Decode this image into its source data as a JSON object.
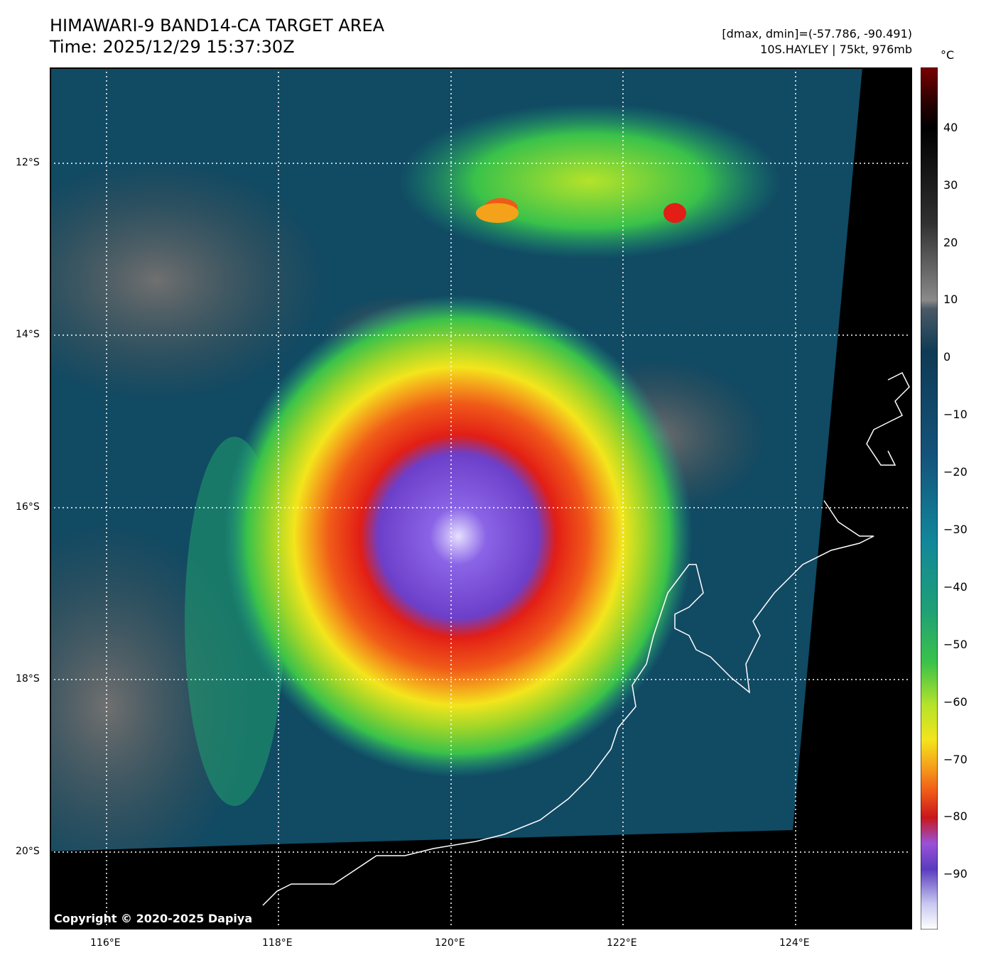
{
  "header": {
    "title_line1": "HIMAWARI-9 BAND14-CA TARGET AREA",
    "title_line2": "Time: 2025/12/29 15:37:30Z",
    "dminmax": "[dmax, dmin]=(-57.786, -90.491)",
    "storm": "10S.HAYLEY | 75kt, 976mb"
  },
  "map": {
    "lat_labels": [
      "12°S",
      "14°S",
      "16°S",
      "18°S",
      "20°S"
    ],
    "lon_labels": [
      "116°E",
      "118°E",
      "120°E",
      "122°E",
      "124°E"
    ],
    "copyright": "Copyright © 2020-2025 Dapiya"
  },
  "colorbar": {
    "unit": "°C",
    "ticks": [
      "40",
      "30",
      "20",
      "10",
      "0",
      "−10",
      "−20",
      "−30",
      "−40",
      "−50",
      "−60",
      "−70",
      "−80",
      "−90"
    ],
    "colors": {
      "hot": "#7a0000",
      "black": "#000000",
      "gray_light": "#9e9e9e",
      "teal_dark": "#0f3a55",
      "teal": "#12879a",
      "green": "#3ac24a",
      "yellow": "#f3e51c",
      "orange": "#f5a21b",
      "red": "#e21e16",
      "purple": "#7e4ad3",
      "white": "#ffffff"
    }
  }
}
